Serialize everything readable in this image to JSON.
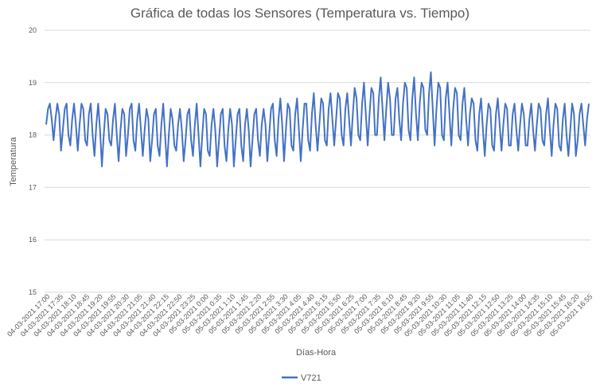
{
  "chart_data": {
    "type": "line",
    "title": "Gráfica de todas los Sensores (Temperatura vs. Tiempo)",
    "xlabel": "Días-Hora",
    "ylabel": "Temperatura",
    "ylim": [
      15,
      20
    ],
    "yticks": [
      15,
      16,
      17,
      18,
      19,
      20
    ],
    "grid": true,
    "legend": "bottom",
    "x_tick_labels": [
      "04-03-2021 17:00",
      "04-03-2021 17:35",
      "04-03-2021 18:10",
      "04-03-2021 18:45",
      "04-03-2021 19:20",
      "04-03-2021 19:55",
      "04-03-2021 20:30",
      "04-03-2021 21:05",
      "04-03-2021 21:40",
      "04-03-2021 22:15",
      "04-03-2021 22:50",
      "04-03-2021 23:25",
      "05-03-2021 0:00",
      "05-03-2021 0:35",
      "05-03-2021 1:10",
      "05-03-2021 1:45",
      "05-03-2021 2:20",
      "05-03-2021 2:55",
      "05-03-2021 3:30",
      "05-03-2021 4:05",
      "05-03-2021 4:40",
      "05-03-2021 5:15",
      "05-03-2021 5:50",
      "05-03-2021 6:25",
      "05-03-2021 7:00",
      "05-03-2021 7:35",
      "05-03-2021 8:10",
      "05-03-2021 8:45",
      "05-03-2021 9:20",
      "05-03-2021 9:55",
      "05-03-2021 10:30",
      "05-03-2021 11:05",
      "05-03-2021 11:40",
      "05-03-2021 12:15",
      "05-03-2021 12:50",
      "05-03-2021 13:25",
      "05-03-2021 14:00",
      "05-03-2021 14:35",
      "05-03-2021 15:10",
      "05-03-2021 15:45",
      "05-03-2021 16:20",
      "05-03-2021 16:55"
    ],
    "series": [
      {
        "name": "V721",
        "color": "#4472c4",
        "values": [
          18.2,
          18.5,
          18.6,
          18.3,
          17.9,
          18.3,
          18.6,
          18.4,
          17.7,
          18.1,
          18.5,
          18.6,
          18.0,
          17.8,
          18.3,
          18.6,
          18.2,
          17.7,
          18.2,
          18.6,
          18.5,
          17.9,
          17.8,
          18.4,
          18.6,
          18.0,
          17.6,
          18.2,
          18.6,
          18.1,
          17.4,
          18.0,
          18.5,
          18.4,
          17.9,
          17.8,
          18.3,
          18.6,
          18.0,
          17.5,
          18.1,
          18.5,
          18.4,
          17.6,
          18.0,
          18.5,
          18.6,
          17.9,
          17.7,
          18.3,
          18.6,
          18.1,
          17.6,
          18.1,
          18.5,
          18.3,
          17.5,
          17.9,
          18.4,
          18.5,
          17.8,
          17.6,
          18.2,
          18.6,
          18.0,
          17.4,
          18.0,
          18.5,
          18.3,
          17.8,
          17.7,
          18.2,
          18.5,
          18.1,
          17.5,
          17.9,
          18.4,
          18.5,
          17.9,
          17.6,
          18.2,
          18.6,
          18.0,
          17.4,
          18.0,
          18.5,
          18.4,
          17.7,
          17.6,
          18.2,
          18.5,
          18.1,
          17.4,
          17.9,
          18.4,
          18.5,
          17.8,
          17.5,
          18.1,
          18.5,
          18.2,
          17.4,
          17.9,
          18.4,
          18.5,
          17.8,
          17.5,
          18.2,
          18.5,
          18.1,
          17.4,
          17.9,
          18.4,
          18.5,
          17.9,
          17.6,
          18.2,
          18.5,
          18.2,
          17.5,
          18.0,
          18.5,
          18.6,
          17.9,
          17.6,
          18.3,
          18.7,
          18.2,
          17.5,
          18.1,
          18.6,
          18.5,
          17.8,
          17.7,
          18.4,
          18.7,
          18.1,
          17.5,
          18.1,
          18.6,
          18.6,
          17.9,
          17.7,
          18.4,
          18.8,
          18.2,
          17.7,
          18.2,
          18.7,
          18.6,
          17.9,
          17.8,
          18.5,
          18.8,
          18.3,
          17.8,
          18.3,
          18.8,
          18.7,
          18.0,
          17.8,
          18.5,
          18.8,
          18.3,
          17.8,
          18.4,
          18.9,
          18.7,
          18.0,
          17.9,
          18.6,
          19.0,
          18.4,
          17.8,
          18.4,
          18.9,
          18.8,
          18.0,
          18.0,
          18.7,
          19.1,
          18.5,
          17.9,
          18.5,
          19.0,
          18.7,
          18.0,
          18.0,
          18.7,
          18.9,
          18.3,
          17.9,
          18.6,
          19.0,
          18.9,
          18.1,
          17.9,
          18.7,
          19.1,
          18.4,
          17.9,
          18.6,
          19.0,
          18.9,
          18.1,
          18.0,
          18.8,
          19.2,
          18.5,
          17.8,
          18.5,
          19.0,
          18.9,
          18.0,
          17.9,
          18.7,
          19.0,
          18.4,
          17.8,
          18.5,
          18.9,
          18.8,
          18.0,
          17.9,
          18.6,
          18.9,
          18.3,
          17.8,
          18.4,
          18.7,
          18.6,
          17.9,
          17.7,
          18.4,
          18.7,
          18.1,
          17.6,
          18.2,
          18.6,
          18.5,
          17.8,
          17.7,
          18.4,
          18.7,
          18.2,
          17.7,
          18.2,
          18.6,
          18.5,
          17.8,
          17.8,
          18.4,
          18.6,
          18.1,
          17.7,
          18.2,
          18.6,
          18.4,
          17.8,
          17.8,
          18.3,
          18.6,
          18.1,
          17.7,
          18.2,
          18.6,
          18.5,
          17.9,
          17.8,
          18.4,
          18.7,
          18.1,
          17.6,
          18.2,
          18.6,
          18.5,
          17.8,
          17.7,
          18.3,
          18.6,
          18.0,
          17.6,
          18.1,
          18.6,
          18.4,
          17.6,
          17.9,
          18.4,
          18.6,
          18.2,
          17.8,
          18.3,
          18.6
        ]
      }
    ]
  }
}
